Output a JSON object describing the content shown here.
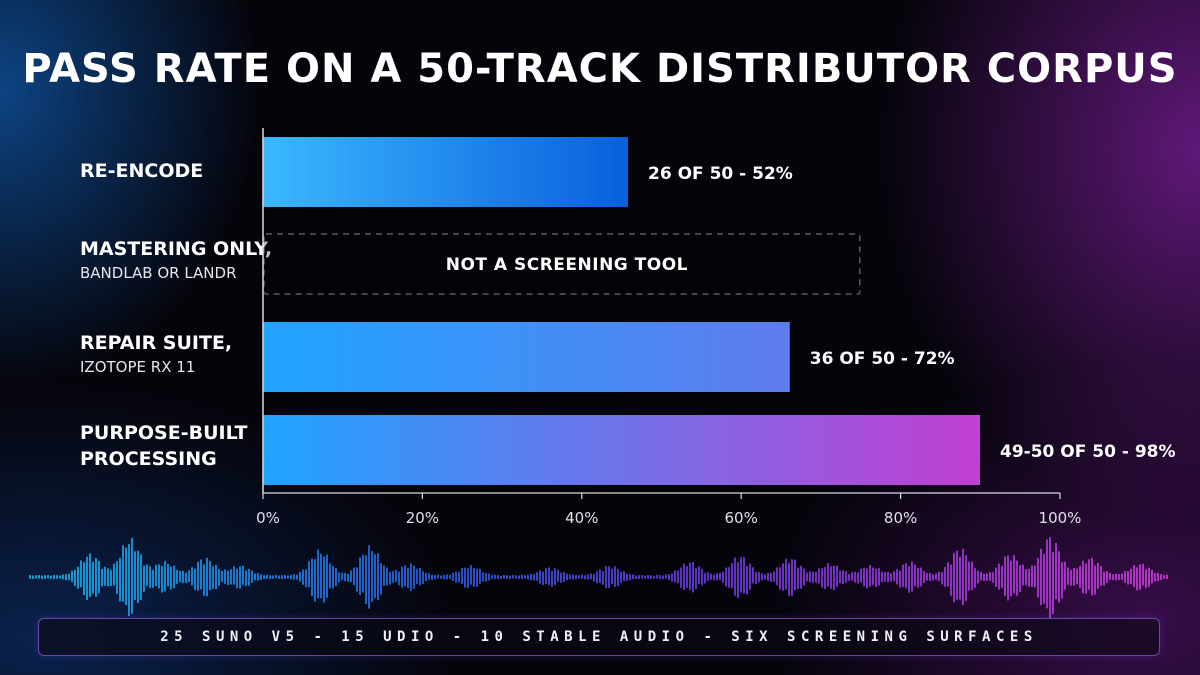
{
  "colors": {
    "background": "#05040b",
    "bar_start": "#1fa4ff",
    "bar_end_max": "#c23fd2",
    "axis": "#d9d9e3"
  },
  "chart_data": {
    "type": "bar",
    "orientation": "horizontal",
    "title": "PASS RATE ON A 50-TRACK DISTRIBUTOR CORPUS",
    "categories": [
      {
        "label": "RE-ENCODE",
        "sublabel": ""
      },
      {
        "label": "MASTERING ONLY,",
        "sublabel": "BANDLAB OR LANDR"
      },
      {
        "label": "REPAIR SUITE,",
        "sublabel": "IZOTOPE RX 11"
      },
      {
        "label": "PURPOSE-BUILT",
        "sublabel": "PROCESSING"
      }
    ],
    "values": [
      52,
      null,
      72,
      98
    ],
    "value_labels": [
      "26 OF 50 - 52%",
      "",
      "36 OF 50 - 72%",
      "49-50 OF 50 - 98%"
    ],
    "na_label": "NOT A SCREENING TOOL",
    "x_ticks": [
      "0%",
      "20%",
      "40%",
      "60%",
      "80%",
      "100%"
    ],
    "xlim": [
      0,
      100
    ],
    "grid": false
  },
  "footer": {
    "text": "25 SUNO V5 - 15 UDIO - 10 STABLE AUDIO - SIX SCREENING SURFACES"
  }
}
